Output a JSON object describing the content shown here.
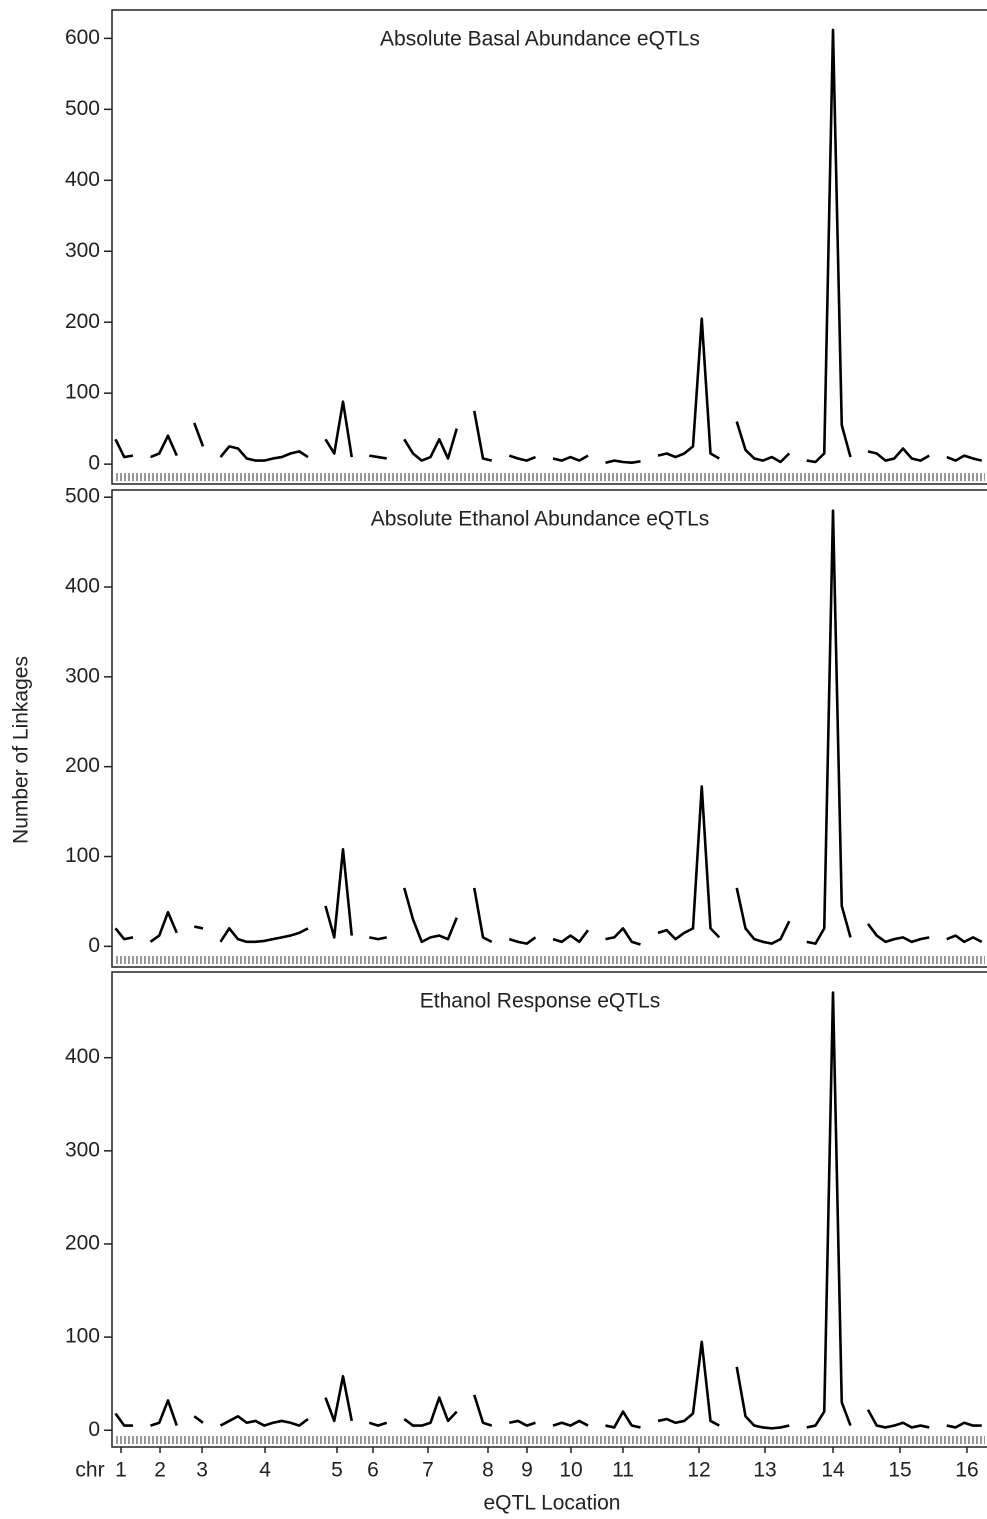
{
  "chart_data": [
    {
      "type": "line",
      "title": "Absolute Basal Abundance eQTLs",
      "color": "#000000",
      "xlim": [
        0,
        1000
      ],
      "ylim": [
        -28,
        640
      ],
      "yticks": [
        0,
        100,
        200,
        300,
        400,
        500,
        600
      ],
      "x": [
        4,
        14,
        24,
        34,
        44,
        54,
        64,
        74,
        84,
        94,
        104,
        114,
        124,
        134,
        144,
        154,
        164,
        174,
        184,
        194,
        204,
        214,
        224,
        234,
        244,
        254,
        264,
        274,
        284,
        294,
        304,
        314,
        324,
        334,
        344,
        354,
        364,
        374,
        384,
        394,
        404,
        414,
        424,
        434,
        444,
        454,
        464,
        474,
        484,
        494,
        504,
        514,
        524,
        534,
        544,
        554,
        564,
        574,
        584,
        594,
        604,
        614,
        624,
        634,
        644,
        654,
        664,
        674,
        684,
        694,
        704,
        714,
        724,
        734,
        744,
        754,
        764,
        774,
        784,
        794,
        804,
        814,
        824,
        834,
        844,
        854,
        864,
        874,
        884,
        894,
        904,
        914,
        924,
        934,
        944,
        954,
        964,
        974,
        984,
        994
      ],
      "values": [
        35,
        10,
        12,
        null,
        10,
        15,
        40,
        12,
        null,
        58,
        25,
        null,
        10,
        25,
        22,
        8,
        5,
        5,
        8,
        10,
        15,
        18,
        10,
        null,
        35,
        15,
        88,
        10,
        null,
        12,
        10,
        8,
        null,
        35,
        15,
        5,
        10,
        35,
        8,
        50,
        null,
        75,
        8,
        5,
        null,
        12,
        8,
        5,
        10,
        null,
        8,
        5,
        10,
        5,
        12,
        null,
        2,
        5,
        3,
        2,
        4,
        null,
        12,
        15,
        10,
        15,
        25,
        205,
        15,
        8,
        null,
        60,
        20,
        8,
        5,
        10,
        3,
        15,
        null,
        5,
        3,
        15,
        612,
        55,
        10,
        null,
        18,
        15,
        5,
        8,
        22,
        8,
        5,
        12,
        null,
        10,
        5,
        12,
        8,
        5
      ]
    },
    {
      "type": "line",
      "title": "Absolute Ethanol Abundance eQTLs",
      "ylabel": "Number of Linkages",
      "color": "#000000",
      "xlim": [
        0,
        1000
      ],
      "ylim": [
        -23,
        508
      ],
      "yticks": [
        0,
        100,
        200,
        300,
        400,
        500
      ],
      "x": [
        4,
        14,
        24,
        34,
        44,
        54,
        64,
        74,
        84,
        94,
        104,
        114,
        124,
        134,
        144,
        154,
        164,
        174,
        184,
        194,
        204,
        214,
        224,
        234,
        244,
        254,
        264,
        274,
        284,
        294,
        304,
        314,
        324,
        334,
        344,
        354,
        364,
        374,
        384,
        394,
        404,
        414,
        424,
        434,
        444,
        454,
        464,
        474,
        484,
        494,
        504,
        514,
        524,
        534,
        544,
        554,
        564,
        574,
        584,
        594,
        604,
        614,
        624,
        634,
        644,
        654,
        664,
        674,
        684,
        694,
        704,
        714,
        724,
        734,
        744,
        754,
        764,
        774,
        784,
        794,
        804,
        814,
        824,
        834,
        844,
        854,
        864,
        874,
        884,
        894,
        904,
        914,
        924,
        934,
        944,
        954,
        964,
        974,
        984,
        994
      ],
      "values": [
        20,
        8,
        10,
        null,
        5,
        12,
        38,
        15,
        null,
        22,
        20,
        null,
        5,
        20,
        8,
        5,
        5,
        6,
        8,
        10,
        12,
        15,
        20,
        null,
        45,
        10,
        108,
        12,
        null,
        10,
        8,
        10,
        null,
        65,
        30,
        5,
        10,
        12,
        8,
        32,
        null,
        65,
        10,
        5,
        null,
        8,
        5,
        3,
        10,
        null,
        8,
        5,
        12,
        5,
        18,
        null,
        8,
        10,
        20,
        5,
        2,
        null,
        15,
        18,
        8,
        15,
        20,
        178,
        20,
        10,
        null,
        65,
        20,
        8,
        5,
        3,
        8,
        28,
        null,
        5,
        3,
        20,
        485,
        45,
        10,
        null,
        25,
        12,
        5,
        8,
        10,
        5,
        8,
        10,
        null,
        8,
        12,
        5,
        10,
        5
      ]
    },
    {
      "type": "line",
      "title": "Ethanol Response eQTLs",
      "xlabel": "eQTL Location",
      "xprefix": "chr",
      "color": "#000000",
      "xlim": [
        0,
        1000
      ],
      "ylim": [
        -18,
        492
      ],
      "yticks": [
        0,
        100,
        200,
        300,
        400
      ],
      "xticks": [
        {
          "value": 10.3,
          "label": "1"
        },
        {
          "value": 54.9,
          "label": "2"
        },
        {
          "value": 102.9,
          "label": "3"
        },
        {
          "value": 174.9,
          "label": "4"
        },
        {
          "value": 257.1,
          "label": "5"
        },
        {
          "value": 298.3,
          "label": "6"
        },
        {
          "value": 361.1,
          "label": "7"
        },
        {
          "value": 429.7,
          "label": "8"
        },
        {
          "value": 474.3,
          "label": "9"
        },
        {
          "value": 524.6,
          "label": "10"
        },
        {
          "value": 584,
          "label": "11"
        },
        {
          "value": 670.9,
          "label": "12"
        },
        {
          "value": 746.3,
          "label": "13"
        },
        {
          "value": 824,
          "label": "14"
        },
        {
          "value": 900.6,
          "label": "15"
        },
        {
          "value": 977.1,
          "label": "16"
        }
      ],
      "x": [
        4,
        14,
        24,
        34,
        44,
        54,
        64,
        74,
        84,
        94,
        104,
        114,
        124,
        134,
        144,
        154,
        164,
        174,
        184,
        194,
        204,
        214,
        224,
        234,
        244,
        254,
        264,
        274,
        284,
        294,
        304,
        314,
        324,
        334,
        344,
        354,
        364,
        374,
        384,
        394,
        404,
        414,
        424,
        434,
        444,
        454,
        464,
        474,
        484,
        494,
        504,
        514,
        524,
        534,
        544,
        554,
        564,
        574,
        584,
        594,
        604,
        614,
        624,
        634,
        644,
        654,
        664,
        674,
        684,
        694,
        704,
        714,
        724,
        734,
        744,
        754,
        764,
        774,
        784,
        794,
        804,
        814,
        824,
        834,
        844,
        854,
        864,
        874,
        884,
        894,
        904,
        914,
        924,
        934,
        944,
        954,
        964,
        974,
        984,
        994
      ],
      "values": [
        18,
        5,
        5,
        null,
        5,
        8,
        32,
        5,
        null,
        15,
        8,
        null,
        5,
        10,
        15,
        8,
        10,
        5,
        8,
        10,
        8,
        5,
        12,
        null,
        35,
        10,
        58,
        10,
        null,
        8,
        5,
        8,
        null,
        12,
        5,
        5,
        8,
        35,
        10,
        20,
        null,
        38,
        8,
        5,
        null,
        8,
        10,
        5,
        8,
        null,
        5,
        8,
        5,
        10,
        5,
        null,
        5,
        3,
        20,
        5,
        3,
        null,
        10,
        12,
        8,
        10,
        18,
        95,
        10,
        5,
        null,
        68,
        15,
        5,
        3,
        2,
        3,
        5,
        null,
        3,
        5,
        20,
        470,
        30,
        5,
        null,
        22,
        5,
        3,
        5,
        8,
        3,
        5,
        3,
        null,
        5,
        3,
        8,
        5,
        5
      ]
    }
  ]
}
